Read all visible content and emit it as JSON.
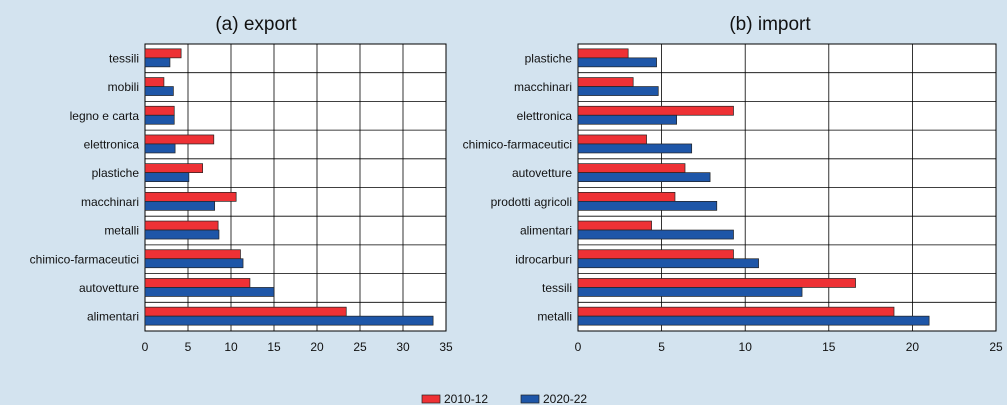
{
  "chart_data": [
    {
      "type": "bar",
      "orientation": "horizontal",
      "title": "(a) export",
      "categories": [
        "tessili",
        "mobili",
        "legno e carta",
        "elettronica",
        "plastiche",
        "macchinari",
        "metalli",
        "chimico-farmaceutici",
        "autovetture",
        "alimentari"
      ],
      "series": [
        {
          "name": "2010-12",
          "color": "#ee3135",
          "values": [
            4.2,
            2.2,
            3.4,
            8.0,
            6.7,
            10.6,
            8.5,
            11.1,
            12.2,
            23.4
          ]
        },
        {
          "name": "2020-22",
          "color": "#1e56a8",
          "values": [
            2.9,
            3.3,
            3.4,
            3.5,
            5.1,
            8.1,
            8.6,
            11.4,
            15.0,
            33.5
          ]
        }
      ],
      "xlim": [
        0,
        35
      ],
      "xticks": [
        "0",
        "5",
        "10",
        "15",
        "20",
        "25",
        "30",
        "35"
      ],
      "grid": "vertical"
    },
    {
      "type": "bar",
      "orientation": "horizontal",
      "title": "(b) import",
      "categories": [
        "plastiche",
        "macchinari",
        "elettronica",
        "chimico-farmaceutici",
        "autovetture",
        "prodotti agricoli",
        "alimentari",
        "idrocarburi",
        "tessili",
        "metalli"
      ],
      "series": [
        {
          "name": "2010-12",
          "color": "#ee3135",
          "values": [
            3.0,
            3.3,
            9.3,
            4.1,
            6.4,
            5.8,
            4.4,
            9.3,
            16.6,
            18.9
          ]
        },
        {
          "name": "2020-22",
          "color": "#1e56a8",
          "values": [
            4.7,
            4.8,
            5.9,
            6.8,
            7.9,
            8.3,
            9.3,
            10.8,
            13.4,
            21.0
          ]
        }
      ],
      "xlim": [
        0,
        25
      ],
      "xticks": [
        "0",
        "5",
        "10",
        "15",
        "20",
        "25"
      ],
      "grid": "vertical"
    }
  ],
  "legend": {
    "position": "bottom-center",
    "items": [
      {
        "label": "2010-12",
        "color": "#ee3135"
      },
      {
        "label": "2020-22",
        "color": "#1e56a8"
      }
    ]
  },
  "colors": {
    "background": "#d3e3ef",
    "plot_background": "#ffffff"
  }
}
